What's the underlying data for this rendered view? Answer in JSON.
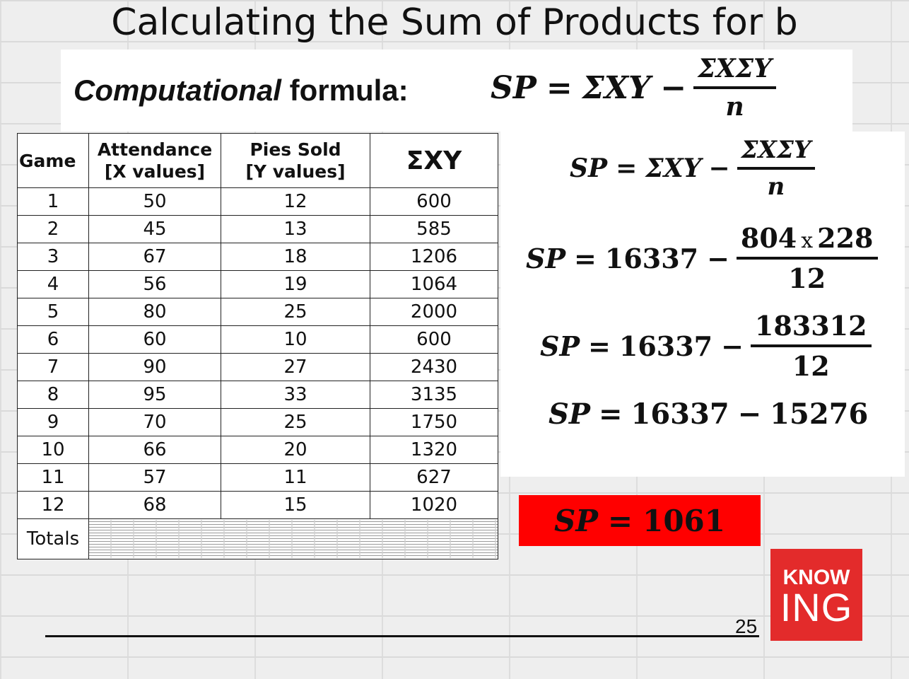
{
  "slide": {
    "title": "Calculating the Sum of Products for b",
    "page_number": "25"
  },
  "formula_banner": {
    "label_italic": "Computational",
    "label_rest": " formula:",
    "lhs": "SP",
    "eq": "=",
    "term": "ΣXY",
    "minus": "−",
    "numerator": "ΣXΣY",
    "denominator": "n"
  },
  "table": {
    "headers": {
      "game": "Game",
      "attendance_line1": "Attendance",
      "attendance_line2": "[X values]",
      "pies_line1": "Pies Sold",
      "pies_line2": "[Y values]",
      "xy": "ΣXY"
    },
    "rows": [
      {
        "game": "1",
        "x": "50",
        "y": "12",
        "xy": "600"
      },
      {
        "game": "2",
        "x": "45",
        "y": "13",
        "xy": "585"
      },
      {
        "game": "3",
        "x": "67",
        "y": "18",
        "xy": "1206"
      },
      {
        "game": "4",
        "x": "56",
        "y": "19",
        "xy": "1064"
      },
      {
        "game": "5",
        "x": "80",
        "y": "25",
        "xy": "2000"
      },
      {
        "game": "6",
        "x": "60",
        "y": "10",
        "xy": "600"
      },
      {
        "game": "7",
        "x": "90",
        "y": "27",
        "xy": "2430"
      },
      {
        "game": "8",
        "x": "95",
        "y": "33",
        "xy": "3135"
      },
      {
        "game": "9",
        "x": "70",
        "y": "25",
        "xy": "1750"
      },
      {
        "game": "10",
        "x": "66",
        "y": "20",
        "xy": "1320"
      },
      {
        "game": "11",
        "x": "57",
        "y": "11",
        "xy": "627"
      },
      {
        "game": "12",
        "x": "68",
        "y": "15",
        "xy": "1020"
      }
    ],
    "totals_label": "Totals"
  },
  "work": {
    "line1": {
      "lhs": "SP",
      "eq": "=",
      "term": "ΣXY",
      "minus": "−",
      "numerator": "ΣXΣY",
      "denominator": "n"
    },
    "line2": {
      "lhs": "SP",
      "eq": "=",
      "value": "16337",
      "minus": "−",
      "num_a": "804",
      "times": "x",
      "num_b": "228",
      "denominator": "12"
    },
    "line3": {
      "lhs": "SP",
      "eq": "=",
      "value": "16337",
      "minus": "−",
      "numerator": "183312",
      "denominator": "12"
    },
    "line4": {
      "lhs": "SP",
      "eq": "=",
      "value": "16337",
      "minus": "−",
      "value2": "15276"
    }
  },
  "result": {
    "lhs": "SP",
    "eq": "=",
    "value": "1061"
  },
  "logo": {
    "top": "KNOW",
    "bottom": "ING"
  },
  "colors": {
    "result_bg": "#ff0000",
    "logo_bg": "#e32b2b"
  }
}
